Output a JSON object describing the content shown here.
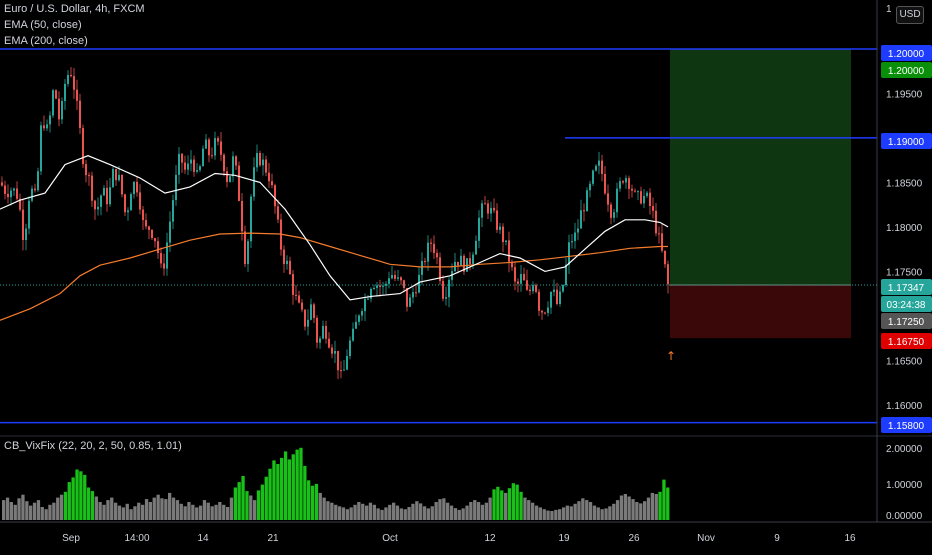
{
  "legend": {
    "title": "Euro / U.S. Dollar, 4h, FXCM",
    "ema50": "EMA (50, close)",
    "ema200": "EMA (200, close)",
    "indicator": "CB_VixFix (22, 20, 2, 50, 0.85, 1.01)"
  },
  "currency_button": "USD",
  "colors": {
    "background": "#000000",
    "up": "#26a69a",
    "down": "#ef5350",
    "ema50": "#ffffff",
    "ema200": "#f57c2c",
    "hline": "#1e3cff",
    "target_zone": "#0f3a12",
    "stop_zone": "#3d0808",
    "vix_high": "#18c018",
    "vix_low": "#7a7a7a"
  },
  "chart_data": {
    "type": "candlestick",
    "price_axis": {
      "range": [
        1.1565,
        1.2055
      ],
      "ticks": [
        "1.20000",
        "1.19500",
        "1.19000",
        "1.18500",
        "1.18000",
        "1.17500",
        "1.17000",
        "1.16500",
        "1.16000"
      ],
      "top_partial_label": "1"
    },
    "time_axis": {
      "labels": [
        "Sep",
        "14:00",
        "14",
        "21",
        "Oct",
        "12",
        "19",
        "26",
        "Nov",
        "9",
        "16"
      ]
    },
    "horizontal_lines": [
      1.2,
      1.19,
      1.158
    ],
    "position": {
      "entry": 1.17347,
      "target": 1.2,
      "stop": 1.1675,
      "target_label": "1.20000",
      "stop_label": "1.16750"
    },
    "price_tags": [
      {
        "text": "1.20000",
        "kind": "line"
      },
      {
        "text": "1.20000",
        "kind": "target"
      },
      {
        "text": "1.19000",
        "kind": "line"
      },
      {
        "text": "1.17347",
        "kind": "last"
      },
      {
        "text": "03:24:38",
        "kind": "countdown"
      },
      {
        "text": "1.17250",
        "kind": "cursor"
      },
      {
        "text": "1.16750",
        "kind": "stop"
      },
      {
        "text": "1.15800",
        "kind": "line"
      }
    ],
    "price_path": [
      [
        0,
        1.185
      ],
      [
        6,
        1.184
      ],
      [
        12,
        1.1843
      ],
      [
        18,
        1.1835
      ],
      [
        24,
        1.1785
      ],
      [
        30,
        1.1845
      ],
      [
        36,
        1.183
      ],
      [
        42,
        1.1925
      ],
      [
        48,
        1.1905
      ],
      [
        54,
        1.196
      ],
      [
        60,
        1.1915
      ],
      [
        66,
        1.197
      ],
      [
        72,
        1.1975
      ],
      [
        78,
        1.1925
      ],
      [
        84,
        1.187
      ],
      [
        90,
        1.185
      ],
      [
        96,
        1.1815
      ],
      [
        102,
        1.184
      ],
      [
        108,
        1.183
      ],
      [
        114,
        1.1865
      ],
      [
        120,
        1.185
      ],
      [
        126,
        1.181
      ],
      [
        132,
        1.185
      ],
      [
        138,
        1.1845
      ],
      [
        144,
        1.1795
      ],
      [
        150,
        1.18
      ],
      [
        156,
        1.1785
      ],
      [
        162,
        1.1745
      ],
      [
        168,
        1.179
      ],
      [
        174,
        1.184
      ],
      [
        180,
        1.188
      ],
      [
        186,
        1.186
      ],
      [
        192,
        1.188
      ],
      [
        198,
        1.185
      ],
      [
        204,
        1.1895
      ],
      [
        210,
        1.188
      ],
      [
        216,
        1.1895
      ],
      [
        222,
        1.188
      ],
      [
        228,
        1.185
      ],
      [
        234,
        1.188
      ],
      [
        240,
        1.1825
      ],
      [
        246,
        1.1755
      ],
      [
        252,
        1.185
      ],
      [
        258,
        1.188
      ],
      [
        264,
        1.187
      ],
      [
        270,
        1.1855
      ],
      [
        276,
        1.1815
      ],
      [
        282,
        1.177
      ],
      [
        288,
        1.1755
      ],
      [
        294,
        1.1725
      ],
      [
        300,
        1.1705
      ],
      [
        306,
        1.169
      ],
      [
        312,
        1.1715
      ],
      [
        318,
        1.1665
      ],
      [
        324,
        1.169
      ],
      [
        330,
        1.167
      ],
      [
        336,
        1.1655
      ],
      [
        342,
        1.1625
      ],
      [
        348,
        1.1665
      ],
      [
        354,
        1.168
      ],
      [
        360,
        1.171
      ],
      [
        366,
        1.172
      ],
      [
        372,
        1.174
      ],
      [
        378,
        1.1735
      ],
      [
        384,
        1.173
      ],
      [
        390,
        1.175
      ],
      [
        396,
        1.174
      ],
      [
        402,
        1.1735
      ],
      [
        408,
        1.171
      ],
      [
        414,
        1.173
      ],
      [
        420,
        1.1745
      ],
      [
        426,
        1.177
      ],
      [
        432,
        1.1785
      ],
      [
        438,
        1.176
      ],
      [
        444,
        1.172
      ],
      [
        450,
        1.175
      ],
      [
        456,
        1.1765
      ],
      [
        462,
        1.176
      ],
      [
        468,
        1.1755
      ],
      [
        474,
        1.178
      ],
      [
        480,
        1.1815
      ],
      [
        486,
        1.1825
      ],
      [
        492,
        1.1815
      ],
      [
        498,
        1.18
      ],
      [
        504,
        1.1785
      ],
      [
        510,
        1.176
      ],
      [
        516,
        1.173
      ],
      [
        522,
        1.1745
      ],
      [
        528,
        1.172
      ],
      [
        534,
        1.1745
      ],
      [
        540,
        1.1705
      ],
      [
        546,
        1.171
      ],
      [
        552,
        1.173
      ],
      [
        558,
        1.171
      ],
      [
        564,
        1.174
      ],
      [
        570,
        1.1785
      ],
      [
        576,
        1.179
      ],
      [
        582,
        1.182
      ],
      [
        588,
        1.1835
      ],
      [
        594,
        1.186
      ],
      [
        600,
        1.187
      ],
      [
        606,
        1.184
      ],
      [
        612,
        1.1815
      ],
      [
        618,
        1.184
      ],
      [
        624,
        1.186
      ],
      [
        630,
        1.185
      ],
      [
        636,
        1.183
      ],
      [
        642,
        1.1835
      ],
      [
        648,
        1.183
      ],
      [
        654,
        1.181
      ],
      [
        660,
        1.178
      ],
      [
        664,
        1.176
      ],
      [
        668,
        1.1734
      ]
    ],
    "ema50_path": [
      [
        0,
        1.182
      ],
      [
        20,
        1.183
      ],
      [
        45,
        1.1838
      ],
      [
        65,
        1.187
      ],
      [
        88,
        1.188
      ],
      [
        110,
        1.187
      ],
      [
        140,
        1.1855
      ],
      [
        165,
        1.1838
      ],
      [
        190,
        1.1845
      ],
      [
        215,
        1.186
      ],
      [
        235,
        1.1858
      ],
      [
        260,
        1.185
      ],
      [
        285,
        1.182
      ],
      [
        310,
        1.178
      ],
      [
        330,
        1.1745
      ],
      [
        350,
        1.1718
      ],
      [
        372,
        1.1722
      ],
      [
        400,
        1.1725
      ],
      [
        420,
        1.1738
      ],
      [
        450,
        1.1745
      ],
      [
        480,
        1.176
      ],
      [
        500,
        1.177
      ],
      [
        520,
        1.1765
      ],
      [
        545,
        1.175
      ],
      [
        565,
        1.1755
      ],
      [
        585,
        1.1775
      ],
      [
        605,
        1.1795
      ],
      [
        625,
        1.1808
      ],
      [
        645,
        1.1808
      ],
      [
        660,
        1.1805
      ],
      [
        668,
        1.18
      ]
    ],
    "ema200_path": [
      [
        0,
        1.1695
      ],
      [
        30,
        1.1708
      ],
      [
        60,
        1.1725
      ],
      [
        80,
        1.1745
      ],
      [
        100,
        1.1757
      ],
      [
        130,
        1.1765
      ],
      [
        160,
        1.1775
      ],
      [
        190,
        1.1785
      ],
      [
        220,
        1.1792
      ],
      [
        250,
        1.1793
      ],
      [
        280,
        1.1792
      ],
      [
        300,
        1.1788
      ],
      [
        330,
        1.1778
      ],
      [
        360,
        1.1768
      ],
      [
        390,
        1.1758
      ],
      [
        420,
        1.1755
      ],
      [
        450,
        1.1755
      ],
      [
        480,
        1.1758
      ],
      [
        510,
        1.176
      ],
      [
        540,
        1.1763
      ],
      [
        570,
        1.1767
      ],
      [
        600,
        1.1771
      ],
      [
        630,
        1.1776
      ],
      [
        660,
        1.1778
      ],
      [
        668,
        1.1778
      ]
    ],
    "indicator_axis": {
      "range": [
        0,
        2.05
      ],
      "ticks": [
        "2.00000",
        "1.00000",
        "0.00000"
      ]
    },
    "vix_values": [
      0.55,
      0.62,
      0.5,
      0.42,
      0.6,
      0.7,
      0.52,
      0.4,
      0.48,
      0.55,
      0.36,
      0.3,
      0.42,
      0.48,
      0.62,
      0.7,
      0.78,
      1.05,
      1.18,
      1.4,
      1.35,
      1.25,
      0.9,
      0.8,
      0.65,
      0.5,
      0.42,
      0.55,
      0.62,
      0.48,
      0.4,
      0.35,
      0.45,
      0.3,
      0.38,
      0.48,
      0.42,
      0.58,
      0.5,
      0.62,
      0.7,
      0.6,
      0.58,
      0.75,
      0.62,
      0.55,
      0.45,
      0.38,
      0.5,
      0.42,
      0.35,
      0.4,
      0.55,
      0.48,
      0.38,
      0.42,
      0.5,
      0.42,
      0.36,
      0.62,
      0.9,
      1.05,
      1.22,
      0.8,
      0.68,
      0.55,
      0.82,
      0.98,
      1.2,
      1.42,
      1.65,
      1.55,
      1.72,
      1.9,
      1.68,
      1.82,
      1.95,
      2.0,
      1.5,
      1.1,
      0.95,
      1.0,
      0.75,
      0.62,
      0.52,
      0.48,
      0.42,
      0.38,
      0.35,
      0.3,
      0.35,
      0.42,
      0.5,
      0.45,
      0.4,
      0.48,
      0.42,
      0.32,
      0.28,
      0.35,
      0.42,
      0.48,
      0.4,
      0.32,
      0.3,
      0.36,
      0.45,
      0.52,
      0.46,
      0.38,
      0.32,
      0.38,
      0.5,
      0.58,
      0.6,
      0.48,
      0.4,
      0.33,
      0.28,
      0.32,
      0.4,
      0.5,
      0.55,
      0.5,
      0.42,
      0.48,
      0.62,
      0.85,
      0.92,
      0.82,
      0.75,
      0.88,
      1.02,
      0.98,
      0.78,
      0.62,
      0.55,
      0.48,
      0.4,
      0.35,
      0.3,
      0.26,
      0.25,
      0.28,
      0.3,
      0.35,
      0.4,
      0.38,
      0.45,
      0.52,
      0.6,
      0.55,
      0.5,
      0.4,
      0.35,
      0.3,
      0.32,
      0.38,
      0.45,
      0.55,
      0.68,
      0.72,
      0.65,
      0.58,
      0.5,
      0.46,
      0.52,
      0.62,
      0.75,
      0.72,
      0.78,
      1.12,
      0.9
    ]
  }
}
